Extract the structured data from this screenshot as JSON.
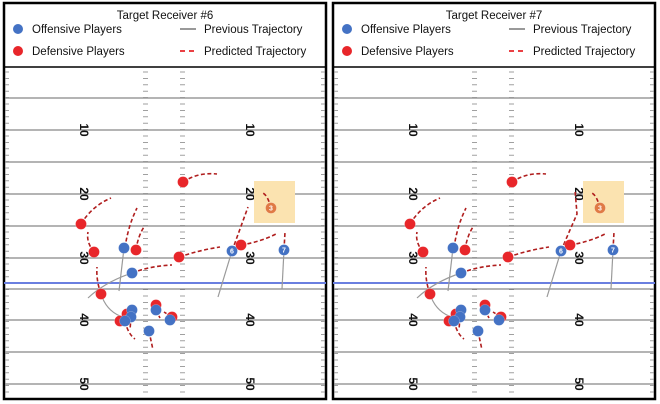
{
  "colors": {
    "offense": "#4472c4",
    "defense": "#e8262a",
    "previous": "#9a9a9a",
    "predicted": "#b01e1e",
    "scrimmage": "#6a7fe0",
    "target_highlight": "#fbe3b0",
    "target_ball": "#e07a45"
  },
  "panels": [
    {
      "title": "Target Receiver #6",
      "legend": {
        "offense": "Offensive Players",
        "defense": "Defensive Players",
        "previous": "Previous Trajectory",
        "predicted": "Predicted Trajectory"
      },
      "yard_numbers": [
        "10",
        "20",
        "30",
        "40",
        "50"
      ],
      "jerseys": {
        "receiver_a": "6",
        "receiver_b": "7",
        "target": "3"
      }
    },
    {
      "title": "Target Receiver #7",
      "legend": {
        "offense": "Offensive Players",
        "defense": "Defensive Players",
        "previous": "Previous Trajectory",
        "predicted": "Predicted Trajectory"
      },
      "yard_numbers": [
        "10",
        "20",
        "30",
        "40",
        "50"
      ],
      "jerseys": {
        "receiver_a": "6",
        "receiver_b": "7",
        "target": "3"
      }
    }
  ]
}
